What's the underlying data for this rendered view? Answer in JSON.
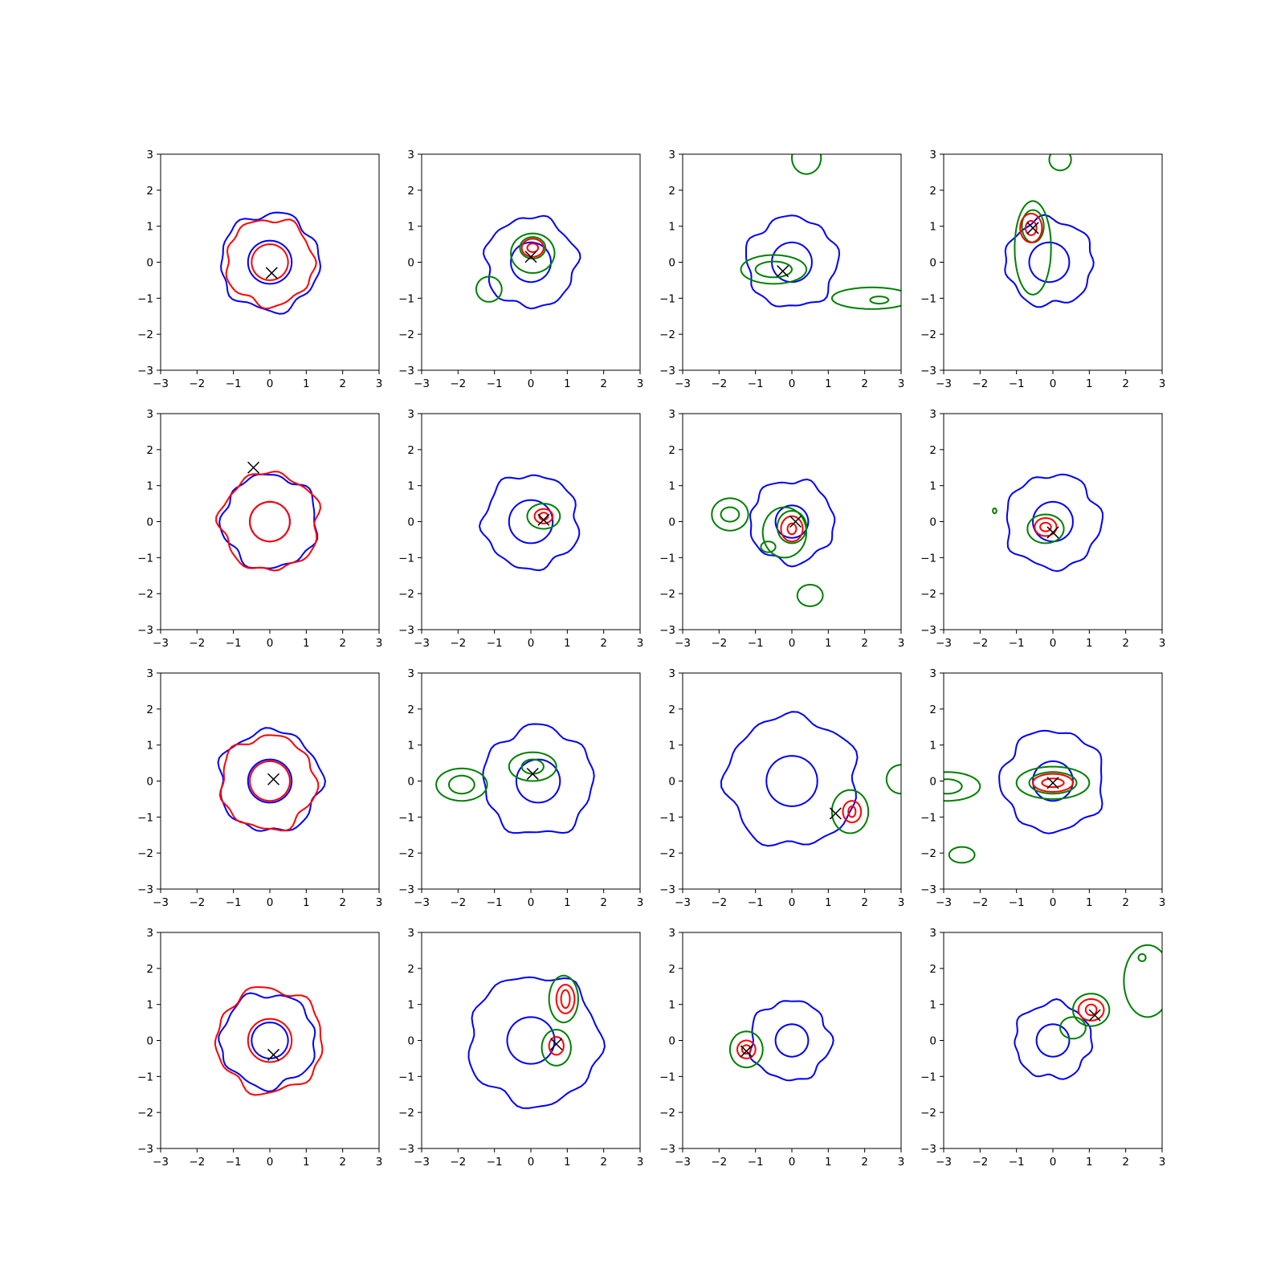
{
  "figure": {
    "layout": "4x4 grid of contour subplots",
    "colors": {
      "outer_ring": "#0000ff",
      "inner_ring": "#0000ff",
      "red_contours": "#ff0000",
      "green_contours": "#008000",
      "marker": "#000000",
      "axes": "#000000"
    }
  },
  "chart_data": [
    {
      "type": "contour",
      "xlim": [
        -3,
        3
      ],
      "ylim": [
        -3,
        3
      ],
      "xticks": [
        "−3",
        "−2",
        "−1",
        "0",
        "1",
        "2",
        "3"
      ],
      "yticks": [
        "−3",
        "−2",
        "−1",
        "0",
        "1",
        "2",
        "3"
      ],
      "marker": [
        0.05,
        -0.3
      ],
      "blue": [
        [
          0,
          0,
          1.35
        ],
        [
          0,
          0,
          0.6
        ]
      ],
      "red": [
        [
          0,
          0,
          1.2
        ],
        [
          0,
          0,
          0.5
        ]
      ],
      "green": []
    },
    {
      "type": "contour",
      "xlim": [
        -3,
        3
      ],
      "ylim": [
        -3,
        3
      ],
      "xticks": [
        "−3",
        "−2",
        "−1",
        "0",
        "1",
        "2",
        "3"
      ],
      "yticks": [
        "−3",
        "−2",
        "−1",
        "0",
        "1",
        "2",
        "3"
      ],
      "marker": [
        0.0,
        0.15
      ],
      "blue": [
        [
          0,
          0,
          1.25
        ],
        [
          0,
          0,
          0.55
        ]
      ],
      "red": [
        [
          0.05,
          0.4,
          0.3,
          0.25
        ],
        [
          0.05,
          0.4,
          0.15,
          0.12
        ]
      ],
      "green": [
        [
          0.05,
          0.25,
          0.6,
          0.55
        ],
        [
          0.05,
          0.4,
          0.35,
          0.3
        ],
        [
          -1.15,
          -0.75,
          0.35,
          0.35
        ]
      ]
    },
    {
      "type": "contour",
      "xlim": [
        -3,
        3
      ],
      "ylim": [
        -3,
        3
      ],
      "xticks": [
        "−3",
        "−2",
        "−1",
        "0",
        "1",
        "2",
        "3"
      ],
      "yticks": [
        "−3",
        "−2",
        "−1",
        "0",
        "1",
        "2",
        "3"
      ],
      "marker": [
        -0.25,
        -0.25
      ],
      "blue": [
        [
          0,
          0,
          1.25
        ],
        [
          0,
          0,
          0.55
        ]
      ],
      "red": [],
      "green": [
        [
          -0.5,
          -0.2,
          0.9,
          0.4
        ],
        [
          -0.5,
          -0.2,
          0.5,
          0.22
        ],
        [
          2.2,
          -1.0,
          1.1,
          0.3
        ],
        [
          2.4,
          -1.05,
          0.25,
          0.1
        ],
        [
          0.4,
          2.9,
          0.4,
          0.45
        ]
      ]
    },
    {
      "type": "contour",
      "xlim": [
        -3,
        3
      ],
      "ylim": [
        -3,
        3
      ],
      "xticks": [
        "−3",
        "−2",
        "−1",
        "0",
        "1",
        "2",
        "3"
      ],
      "yticks": [
        "−3",
        "−2",
        "−1",
        "0",
        "1",
        "2",
        "3"
      ],
      "marker": [
        -0.55,
        0.95
      ],
      "blue": [
        [
          -0.1,
          0,
          1.2
        ],
        [
          -0.1,
          0,
          0.55
        ]
      ],
      "red": [
        [
          -0.6,
          0.95,
          0.3,
          0.4
        ],
        [
          -0.6,
          0.95,
          0.15,
          0.2
        ]
      ],
      "green": [
        [
          -0.55,
          0.4,
          0.5,
          1.3
        ],
        [
          -0.55,
          1.0,
          0.3,
          0.45
        ],
        [
          0.2,
          2.85,
          0.3,
          0.3
        ]
      ]
    },
    {
      "type": "contour",
      "xlim": [
        -3,
        3
      ],
      "ylim": [
        -3,
        3
      ],
      "xticks": [
        "−3",
        "−2",
        "−1",
        "0",
        "1",
        "2",
        "3"
      ],
      "yticks": [
        "−3",
        "−2",
        "−1",
        "0",
        "1",
        "2",
        "3"
      ],
      "marker": [
        -0.45,
        1.5
      ],
      "blue": [
        [
          0,
          0,
          1.3
        ],
        [
          0,
          0,
          0.55
        ]
      ],
      "red": [
        [
          0,
          0,
          1.35
        ],
        [
          0,
          0,
          0.55
        ]
      ],
      "green": []
    },
    {
      "type": "contour",
      "xlim": [
        -3,
        3
      ],
      "ylim": [
        -3,
        3
      ],
      "xticks": [
        "−3",
        "−2",
        "−1",
        "0",
        "1",
        "2",
        "3"
      ],
      "yticks": [
        "−3",
        "−2",
        "−1",
        "0",
        "1",
        "2",
        "3"
      ],
      "marker": [
        0.35,
        0.05
      ],
      "blue": [
        [
          0,
          0,
          1.3
        ],
        [
          0,
          0,
          0.6
        ]
      ],
      "red": [
        [
          0.35,
          0.15,
          0.25,
          0.2
        ],
        [
          0.35,
          0.15,
          0.12,
          0.1
        ]
      ],
      "green": [
        [
          0.35,
          0.15,
          0.45,
          0.35
        ]
      ]
    },
    {
      "type": "contour",
      "xlim": [
        -3,
        3
      ],
      "ylim": [
        -3,
        3
      ],
      "xticks": [
        "−3",
        "−2",
        "−1",
        "0",
        "1",
        "2",
        "3"
      ],
      "yticks": [
        "−3",
        "−2",
        "−1",
        "0",
        "1",
        "2",
        "3"
      ],
      "marker": [
        0.1,
        0.0
      ],
      "blue": [
        [
          0,
          0,
          1.15
        ],
        [
          0,
          0,
          0.45
        ]
      ],
      "red": [
        [
          0.0,
          -0.2,
          0.3,
          0.35
        ],
        [
          0.0,
          -0.2,
          0.12,
          0.15
        ]
      ],
      "green": [
        [
          -0.2,
          -0.3,
          0.6,
          0.7
        ],
        [
          0.0,
          -0.15,
          0.4,
          0.45
        ],
        [
          -1.7,
          0.2,
          0.5,
          0.45
        ],
        [
          -1.7,
          0.2,
          0.25,
          0.2
        ],
        [
          -0.65,
          -0.7,
          0.2,
          0.15
        ],
        [
          0.5,
          -2.05,
          0.35,
          0.3
        ]
      ]
    },
    {
      "type": "contour",
      "xlim": [
        -3,
        3
      ],
      "ylim": [
        -3,
        3
      ],
      "xticks": [
        "−3",
        "−2",
        "−1",
        "0",
        "1",
        "2",
        "3"
      ],
      "yticks": [
        "−3",
        "−2",
        "−1",
        "0",
        "1",
        "2",
        "3"
      ],
      "marker": [
        0.0,
        -0.3
      ],
      "blue": [
        [
          0,
          0,
          1.3
        ],
        [
          0,
          0,
          0.55
        ]
      ],
      "red": [
        [
          -0.2,
          -0.15,
          0.3,
          0.25
        ],
        [
          -0.2,
          -0.15,
          0.15,
          0.12
        ]
      ],
      "green": [
        [
          -0.2,
          -0.2,
          0.5,
          0.4
        ],
        [
          -1.6,
          0.3,
          0.05,
          0.07
        ]
      ]
    },
    {
      "type": "contour",
      "xlim": [
        -3,
        3
      ],
      "ylim": [
        -3,
        3
      ],
      "xticks": [
        "−3",
        "−2",
        "−1",
        "0",
        "1",
        "2",
        "3"
      ],
      "yticks": [
        "−3",
        "−2",
        "−1",
        "0",
        "1",
        "2",
        "3"
      ],
      "marker": [
        0.1,
        0.05
      ],
      "blue": [
        [
          0,
          0,
          1.4
        ],
        [
          0,
          0,
          0.6
        ]
      ],
      "red": [
        [
          -0.05,
          -0.05,
          1.3
        ],
        [
          0,
          0,
          0.55
        ]
      ],
      "green": []
    },
    {
      "type": "contour",
      "xlim": [
        -3,
        3
      ],
      "ylim": [
        -3,
        3
      ],
      "xticks": [
        "−3",
        "−2",
        "−1",
        "0",
        "1",
        "2",
        "3"
      ],
      "yticks": [
        "−3",
        "−2",
        "−1",
        "0",
        "1",
        "2",
        "3"
      ],
      "marker": [
        0.05,
        0.2
      ],
      "blue": [
        [
          0.2,
          0,
          1.5
        ],
        [
          0.2,
          0,
          0.6
        ]
      ],
      "red": [],
      "green": [
        [
          0.05,
          0.4,
          0.65,
          0.4
        ],
        [
          0.05,
          0.4,
          0.3,
          0.2
        ],
        [
          -1.9,
          -0.1,
          0.7,
          0.45
        ],
        [
          -1.9,
          -0.1,
          0.35,
          0.25
        ]
      ]
    },
    {
      "type": "contour",
      "xlim": [
        -3,
        3
      ],
      "ylim": [
        -3,
        3
      ],
      "xticks": [
        "−3",
        "−2",
        "−1",
        "0",
        "1",
        "2",
        "3"
      ],
      "yticks": [
        "−3",
        "−2",
        "−1",
        "0",
        "1",
        "2",
        "3"
      ],
      "marker": [
        1.2,
        -0.9
      ],
      "blue": [
        [
          0,
          0,
          1.8
        ],
        [
          0,
          0,
          0.7
        ]
      ],
      "red": [
        [
          1.65,
          -0.85,
          0.25,
          0.3
        ],
        [
          1.65,
          -0.85,
          0.1,
          0.15
        ]
      ],
      "green": [
        [
          1.6,
          -0.85,
          0.5,
          0.6
        ],
        [
          3.0,
          0.05,
          0.4,
          0.4
        ]
      ]
    },
    {
      "type": "contour",
      "xlim": [
        -3,
        3
      ],
      "ylim": [
        -3,
        3
      ],
      "xticks": [
        "−3",
        "−2",
        "−1",
        "0",
        "1",
        "2",
        "3"
      ],
      "yticks": [
        "−3",
        "−2",
        "−1",
        "0",
        "1",
        "2",
        "3"
      ],
      "marker": [
        0.0,
        -0.05
      ],
      "blue": [
        [
          0,
          0,
          1.4
        ],
        [
          0,
          0,
          0.55
        ]
      ],
      "red": [
        [
          0.0,
          -0.05,
          0.55,
          0.25
        ],
        [
          0.0,
          -0.05,
          0.3,
          0.12
        ]
      ],
      "green": [
        [
          0.0,
          -0.05,
          1.0,
          0.45
        ],
        [
          0.0,
          -0.05,
          0.65,
          0.3
        ],
        [
          -2.9,
          -0.15,
          0.9,
          0.4
        ],
        [
          -2.9,
          -0.15,
          0.4,
          0.2
        ],
        [
          -2.5,
          -2.05,
          0.35,
          0.22
        ]
      ]
    },
    {
      "type": "contour",
      "xlim": [
        -3,
        3
      ],
      "ylim": [
        -3,
        3
      ],
      "xticks": [
        "−3",
        "−2",
        "−1",
        "0",
        "1",
        "2",
        "3"
      ],
      "yticks": [
        "−3",
        "−2",
        "−1",
        "0",
        "1",
        "2",
        "3"
      ],
      "marker": [
        0.1,
        -0.4
      ],
      "blue": [
        [
          -0.05,
          0,
          1.3
        ],
        [
          0,
          0,
          0.5
        ]
      ],
      "red": [
        [
          0,
          0,
          1.45
        ],
        [
          0,
          0,
          0.6
        ]
      ],
      "green": []
    },
    {
      "type": "contour",
      "xlim": [
        -3,
        3
      ],
      "ylim": [
        -3,
        3
      ],
      "xticks": [
        "−3",
        "−2",
        "−1",
        "0",
        "1",
        "2",
        "3"
      ],
      "yticks": [
        "−3",
        "−2",
        "−1",
        "0",
        "1",
        "2",
        "3"
      ],
      "marker": [
        0.7,
        -0.1
      ],
      "blue": [
        [
          0.1,
          0,
          1.8
        ],
        [
          0,
          0,
          0.65
        ]
      ],
      "red": [
        [
          0.95,
          1.15,
          0.25,
          0.4
        ],
        [
          0.95,
          1.15,
          0.12,
          0.25
        ],
        [
          0.7,
          -0.15,
          0.2,
          0.25
        ]
      ],
      "green": [
        [
          0.9,
          1.15,
          0.4,
          0.65
        ],
        [
          0.7,
          -0.2,
          0.4,
          0.5
        ]
      ]
    },
    {
      "type": "contour",
      "xlim": [
        -3,
        3
      ],
      "ylim": [
        -3,
        3
      ],
      "xticks": [
        "−3",
        "−2",
        "−1",
        "0",
        "1",
        "2",
        "3"
      ],
      "yticks": [
        "−3",
        "−2",
        "−1",
        "0",
        "1",
        "2",
        "3"
      ],
      "marker": [
        -1.25,
        -0.3
      ],
      "blue": [
        [
          -0.05,
          0,
          1.1
        ],
        [
          0,
          0,
          0.45
        ]
      ],
      "red": [
        [
          -1.25,
          -0.25,
          0.25,
          0.25
        ],
        [
          -1.25,
          -0.25,
          0.12,
          0.12
        ]
      ],
      "green": [
        [
          -1.25,
          -0.25,
          0.45,
          0.5
        ]
      ]
    },
    {
      "type": "contour",
      "xlim": [
        -3,
        3
      ],
      "ylim": [
        -3,
        3
      ],
      "xticks": [
        "−3",
        "−2",
        "−1",
        "0",
        "1",
        "2",
        "3"
      ],
      "yticks": [
        "−3",
        "−2",
        "−1",
        "0",
        "1",
        "2",
        "3"
      ],
      "marker": [
        1.15,
        0.7
      ],
      "blue": [
        [
          0,
          0,
          1.05
        ],
        [
          0,
          0,
          0.45
        ]
      ],
      "red": [
        [
          1.05,
          0.85,
          0.35,
          0.3
        ],
        [
          1.05,
          0.85,
          0.15,
          0.15
        ]
      ],
      "green": [
        [
          1.05,
          0.85,
          0.5,
          0.45
        ],
        [
          0.55,
          0.35,
          0.35,
          0.3
        ],
        [
          2.6,
          1.65,
          0.65,
          1.0
        ],
        [
          2.45,
          2.3,
          0.1,
          0.1
        ]
      ]
    }
  ]
}
